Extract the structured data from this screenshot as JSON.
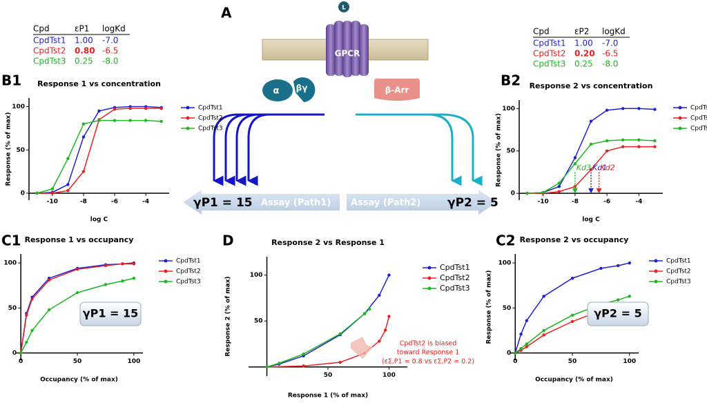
{
  "chart_data": [
    {
      "type": "line",
      "panel": "B1",
      "title": "Response 1 vs concentration",
      "xlabel": "log C",
      "ylabel": "Response (% of max)",
      "xlim": [
        -11.5,
        -2.5
      ],
      "ylim": [
        -8,
        110
      ],
      "xticks": [
        -10,
        -8,
        -6,
        -4
      ],
      "yticks": [
        0,
        50,
        100
      ],
      "x": [
        -11,
        -10,
        -9,
        -8,
        -7,
        -6,
        -5,
        -4,
        -3
      ],
      "series": [
        {
          "name": "CpdTst1",
          "color": "#1f1fd6",
          "values": [
            0,
            1,
            10,
            65,
            95,
            99,
            100,
            100,
            99
          ]
        },
        {
          "name": "CpdTst2",
          "color": "#e8201f",
          "values": [
            0,
            0,
            3,
            25,
            85,
            97,
            98,
            98,
            98
          ]
        },
        {
          "name": "CpdTst3",
          "color": "#1bb81b",
          "values": [
            0,
            5,
            40,
            80,
            84,
            84,
            84,
            84,
            83
          ]
        }
      ]
    },
    {
      "type": "line",
      "panel": "B2",
      "title": "Response 2 vs concentration",
      "xlabel": "log C",
      "ylabel": "Response (% of max)",
      "xlim": [
        -11.5,
        -2.5
      ],
      "ylim": [
        -8,
        110
      ],
      "xticks": [
        -10,
        -8,
        -6,
        -4
      ],
      "yticks": [
        0,
        50,
        100
      ],
      "x": [
        -11,
        -10,
        -9,
        -8,
        -7,
        -6,
        -5,
        -4,
        -3
      ],
      "series": [
        {
          "name": "CpdTst1",
          "color": "#1f1fd6",
          "values": [
            0,
            1,
            8,
            42,
            85,
            98,
            100,
            100,
            99
          ]
        },
        {
          "name": "CpdTst2",
          "color": "#e8201f",
          "values": [
            0,
            0,
            2,
            8,
            28,
            50,
            55,
            55,
            55
          ]
        },
        {
          "name": "CpdTst3",
          "color": "#1bb81b",
          "values": [
            0,
            1,
            12,
            35,
            58,
            62,
            63,
            63,
            62
          ]
        }
      ],
      "markers": [
        {
          "label": "Kd3",
          "x": -8,
          "color": "#1bb81b"
        },
        {
          "label": "Kd1",
          "x": -7,
          "color": "#1f1fd6"
        },
        {
          "label": "Kd2",
          "x": -6.5,
          "color": "#e8201f"
        }
      ]
    },
    {
      "type": "line",
      "panel": "C1",
      "title": "Response 1 vs occupancy",
      "xlabel": "Occupancy (% of max)",
      "ylabel": "Response (% of max)",
      "xlim": [
        -5,
        108
      ],
      "ylim": [
        -8,
        110
      ],
      "xticks": [
        0,
        50,
        100
      ],
      "yticks": [
        0,
        50,
        100
      ],
      "x": [
        0,
        5,
        10,
        25,
        50,
        75,
        90,
        100
      ],
      "series": [
        {
          "name": "CpdTst1",
          "color": "#1f1fd6",
          "values": [
            0,
            44,
            62,
            83,
            94,
            98,
            99,
            100
          ]
        },
        {
          "name": "CpdTst2",
          "color": "#e8201f",
          "values": [
            0,
            42,
            60,
            81,
            93,
            97,
            99,
            99
          ]
        },
        {
          "name": "CpdTst3",
          "color": "#1bb81b",
          "values": [
            0,
            12,
            25,
            48,
            67,
            76,
            80,
            83
          ]
        }
      ],
      "box_label": "γP1 = 15"
    },
    {
      "type": "line",
      "panel": "D",
      "title": "Response 2 vs Response 1",
      "xlabel": "Response 1 (% of max)",
      "ylabel": "Response 2 (% of max)",
      "xlim": [
        -15,
        115
      ],
      "ylim": [
        -10,
        120
      ],
      "xticks": [
        50,
        100
      ],
      "yticks": [
        50,
        100
      ],
      "series": [
        {
          "name": "CpdTst1",
          "color": "#1f1fd6",
          "x": [
            0,
            10,
            30,
            60,
            80,
            92,
            100
          ],
          "values": [
            0,
            3,
            12,
            35,
            58,
            78,
            100
          ]
        },
        {
          "name": "CpdTst2",
          "color": "#e8201f",
          "x": [
            0,
            30,
            60,
            80,
            92,
            97,
            100
          ],
          "values": [
            0,
            1,
            5,
            15,
            28,
            40,
            55
          ]
        },
        {
          "name": "CpdTst3",
          "color": "#1bb81b",
          "x": [
            0,
            10,
            30,
            60,
            80,
            84
          ],
          "values": [
            0,
            4,
            14,
            36,
            58,
            63
          ]
        }
      ],
      "note": [
        "CpdTst2 is biased",
        "toward Response 1",
        "(εΣ,P1 = 0.8 vs εΣ,P2 = 0.2)"
      ]
    },
    {
      "type": "line",
      "panel": "C2",
      "title": "Response 2 vs occupancy",
      "xlabel": "Occupancy (% of max)",
      "ylabel": "Response (% of max)",
      "xlim": [
        -5,
        108
      ],
      "ylim": [
        -8,
        110
      ],
      "xticks": [
        0,
        50,
        100
      ],
      "yticks": [
        0,
        50,
        100
      ],
      "x": [
        0,
        5,
        10,
        25,
        50,
        75,
        90,
        100
      ],
      "series": [
        {
          "name": "CpdTst1",
          "color": "#1f1fd6",
          "values": [
            0,
            21,
            36,
            63,
            83,
            94,
            97,
            100
          ]
        },
        {
          "name": "CpdTst2",
          "color": "#e8201f",
          "values": [
            0,
            3,
            7,
            20,
            35,
            47,
            52,
            55
          ]
        },
        {
          "name": "CpdTst3",
          "color": "#1bb81b",
          "values": [
            0,
            5,
            10,
            25,
            42,
            54,
            59,
            63
          ]
        }
      ],
      "box_label": "γP2 = 5"
    }
  ],
  "diagram": {
    "panel": "A",
    "receptor": "GPCR",
    "ligand": "L",
    "g_alpha": "α",
    "g_betagamma": "βγ",
    "arrestin": "β-Arr",
    "path1": {
      "gamma": "γP1 = 15",
      "assay": "Assay (Path1)"
    },
    "path2": {
      "gamma": "γP2 = 5",
      "assay": "Assay (Path2)"
    },
    "tables": [
      {
        "header": [
          "Cpd",
          "εP1",
          "logKd"
        ],
        "rows": [
          {
            "cells": [
              "CpdTst1",
              "1.00",
              "-7.0"
            ],
            "color": "#1f1fd6"
          },
          {
            "cells": [
              "CpdTst2",
              "0.80",
              "-6.5"
            ],
            "color": "#e8201f",
            "bold_cell": 1
          },
          {
            "cells": [
              "CpdTst3",
              "0.25",
              "-8.0"
            ],
            "color": "#1bb81b"
          }
        ]
      },
      {
        "header": [
          "Cpd",
          "εP2",
          "logKd"
        ],
        "rows": [
          {
            "cells": [
              "CpdTst1",
              "1.00",
              "-7.0"
            ],
            "color": "#1f1fd6"
          },
          {
            "cells": [
              "CpdTst2",
              "0.20",
              "-6.5"
            ],
            "color": "#e8201f",
            "bold_cell": 1
          },
          {
            "cells": [
              "CpdTst3",
              "0.25",
              "-8.0"
            ],
            "color": "#1bb81b"
          }
        ]
      }
    ]
  }
}
